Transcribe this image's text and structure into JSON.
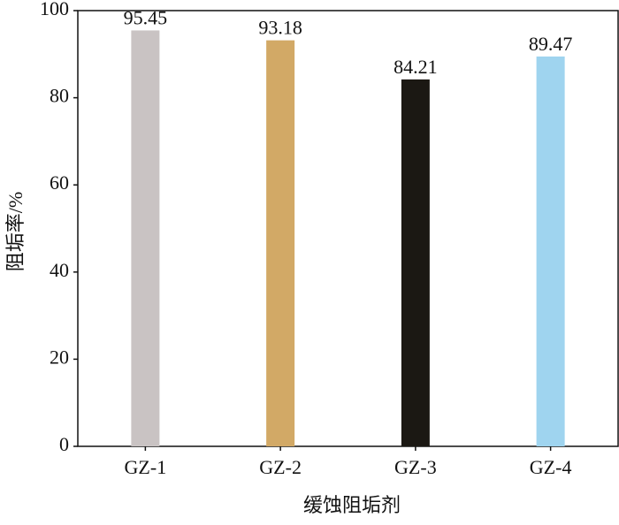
{
  "chart_data": {
    "type": "bar",
    "x_label": "缓蚀阻垢剂",
    "y_label": "阻垢率/%",
    "categories": [
      "GZ-1",
      "GZ-2",
      "GZ-3",
      "GZ-4"
    ],
    "values": [
      95.45,
      93.18,
      84.21,
      89.47
    ],
    "colors": [
      "#c9c3c3",
      "#d2a966",
      "#1b1813",
      "#9fd4ef"
    ],
    "ylim": [
      0,
      100
    ],
    "yticks": [
      0,
      20,
      40,
      60,
      80,
      100
    ],
    "grid": false
  }
}
